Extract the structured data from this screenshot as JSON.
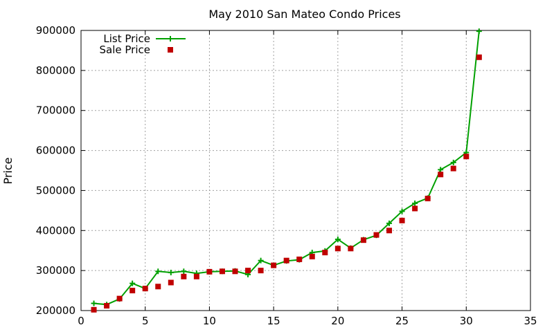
{
  "chart_data": {
    "type": "line",
    "title": "May 2010 San Mateo Condo Prices",
    "xlabel": "",
    "ylabel": "Price",
    "xlim": [
      0,
      35
    ],
    "ylim": [
      200000,
      900000
    ],
    "xticks": [
      "0",
      "5",
      "10",
      "15",
      "20",
      "25",
      "30",
      "35"
    ],
    "yticks": [
      "200000",
      "300000",
      "400000",
      "500000",
      "600000",
      "700000",
      "800000",
      "900000"
    ],
    "grid": true,
    "legend_position": "top-left",
    "series": [
      {
        "name": "List Price",
        "style": "line-with-plus-markers",
        "color": "#00a000",
        "x": [
          1,
          2,
          3,
          4,
          5,
          6,
          7,
          8,
          9,
          10,
          11,
          12,
          13,
          14,
          15,
          16,
          17,
          18,
          19,
          20,
          21,
          22,
          23,
          24,
          25,
          26,
          27,
          28,
          29,
          30,
          31
        ],
        "y": [
          218000,
          215000,
          229000,
          268000,
          255000,
          298000,
          295000,
          298000,
          293000,
          297000,
          298000,
          299000,
          290000,
          325000,
          313000,
          324000,
          327000,
          345000,
          349000,
          378000,
          356000,
          377000,
          388000,
          418000,
          448000,
          468000,
          481000,
          552000,
          570000,
          595000,
          898000
        ]
      },
      {
        "name": "Sale Price",
        "style": "square-markers",
        "color": "#c00000",
        "x": [
          1,
          2,
          3,
          4,
          5,
          6,
          7,
          8,
          9,
          10,
          11,
          12,
          13,
          14,
          15,
          16,
          17,
          18,
          19,
          20,
          21,
          22,
          23,
          24,
          25,
          26,
          27,
          28,
          29,
          30,
          31
        ],
        "y": [
          202000,
          212000,
          230000,
          250000,
          255000,
          260000,
          270000,
          285000,
          285000,
          297000,
          298000,
          298000,
          300000,
          300000,
          313000,
          325000,
          328000,
          335000,
          345000,
          355000,
          355000,
          376000,
          389000,
          400000,
          425000,
          455000,
          480000,
          540000,
          555000,
          585000,
          833000
        ]
      }
    ]
  }
}
